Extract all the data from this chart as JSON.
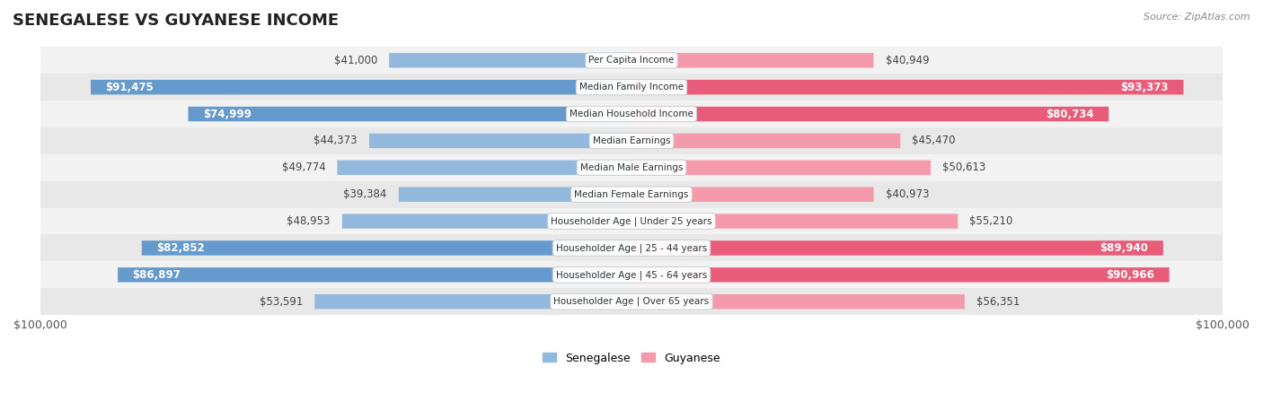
{
  "title": "SENEGALESE VS GUYANESE INCOME",
  "source": "Source: ZipAtlas.com",
  "categories": [
    "Per Capita Income",
    "Median Family Income",
    "Median Household Income",
    "Median Earnings",
    "Median Male Earnings",
    "Median Female Earnings",
    "Householder Age | Under 25 years",
    "Householder Age | 25 - 44 years",
    "Householder Age | 45 - 64 years",
    "Householder Age | Over 65 years"
  ],
  "senegalese_values": [
    41000,
    91475,
    74999,
    44373,
    49774,
    39384,
    48953,
    82852,
    86897,
    53591
  ],
  "guyanese_values": [
    40949,
    93373,
    80734,
    45470,
    50613,
    40973,
    55210,
    89940,
    90966,
    56351
  ],
  "senegalese_labels": [
    "$41,000",
    "$91,475",
    "$74,999",
    "$44,373",
    "$49,774",
    "$39,384",
    "$48,953",
    "$82,852",
    "$86,897",
    "$53,591"
  ],
  "guyanese_labels": [
    "$40,949",
    "$93,373",
    "$80,734",
    "$45,470",
    "$50,613",
    "$40,973",
    "$55,210",
    "$89,940",
    "$90,966",
    "$56,351"
  ],
  "senegalese_color": "#93b8dd",
  "guyanese_color": "#f599ac",
  "senegalese_color_strong": "#6699cc",
  "guyanese_color_strong": "#e85c7a",
  "max_value": 100000,
  "title_fontsize": 13,
  "label_fontsize": 8.5,
  "bar_height": 0.55,
  "legend_labels": [
    "Senegalese",
    "Guyanese"
  ],
  "inside_threshold": 60000,
  "row_colors": [
    "#f2f2f2",
    "#e8e8e8"
  ]
}
